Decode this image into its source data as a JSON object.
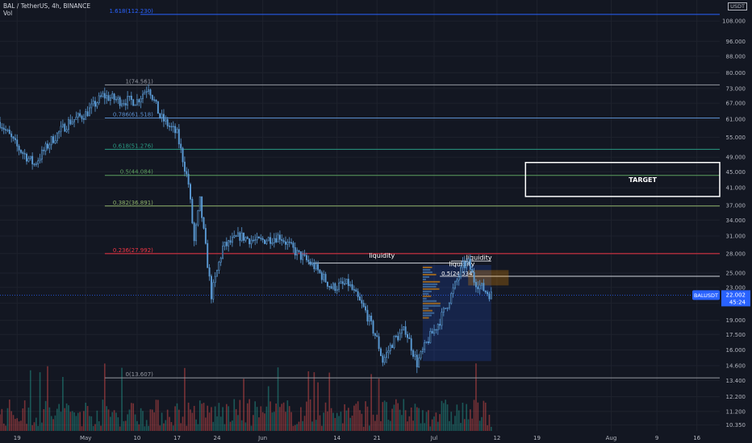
{
  "header": {
    "symbol_line": "BAL / TetherUS, 4h, BINANCE",
    "volume_label": "Vol",
    "currency": "USDT"
  },
  "price_axis": {
    "ticks": [
      "108.000",
      "96.000",
      "88.000",
      "80.000",
      "73.000",
      "67.000",
      "61.000",
      "55.000",
      "49.000",
      "45.000",
      "41.000",
      "37.000",
      "34.000",
      "31.000",
      "28.000",
      "25.000",
      "23.000",
      "21.000",
      "19.000",
      "17.500",
      "16.000",
      "14.600",
      "13.400",
      "12.200",
      "11.200",
      "10.350"
    ],
    "scale": "log",
    "current_price": "22.002",
    "countdown": "45:24",
    "ticker": "BALUSDT"
  },
  "time_axis": {
    "ticks": [
      "19",
      "May",
      "10",
      "17",
      "24",
      "Jun",
      "14",
      "21",
      "Jul",
      "12",
      "19",
      "Aug",
      "9",
      "16"
    ]
  },
  "fib_levels": [
    {
      "label": "1.618(112.230)",
      "price": 112.23,
      "color": "#2962ff"
    },
    {
      "label": "1(74.561)",
      "price": 74.561,
      "color": "#9598a1"
    },
    {
      "label": "0.786(61.518)",
      "price": 61.518,
      "color": "#5b8fcf"
    },
    {
      "label": "0.618(51.276)",
      "price": 51.276,
      "color": "#2a9b84"
    },
    {
      "label": "0.5(44.084)",
      "price": 44.084,
      "color": "#5da05f"
    },
    {
      "label": "0.382(36.891)",
      "price": 36.891,
      "color": "#8fb36b"
    },
    {
      "label": "0.236(27.992)",
      "price": 27.992,
      "color": "#f23645"
    },
    {
      "label": "0(13.607)",
      "price": 13.607,
      "color": "#9598a1"
    }
  ],
  "annotations": {
    "target_label": "TARGET",
    "liquidity_1": "liquidity",
    "liquidity_2": "liquidity",
    "liquidity_3": "liquidity",
    "fib_mid": "0.5(24.534)"
  },
  "colors": {
    "up": "#5b9bd5",
    "down": "#5b9bd5",
    "vol_up": "#26a69a",
    "vol_down": "#ef5350",
    "background": "#131722",
    "grid": "#1e222d",
    "price_tag": "#2962ff"
  },
  "chart_data": {
    "type": "candlestick",
    "timeframe": "4h",
    "y_scale": "log",
    "y_range": [
      10.0,
      122.0
    ],
    "x_range": [
      "2021-04-16",
      "2021-08-20"
    ],
    "price_path": [
      {
        "date": "2021-04-16",
        "price": 60
      },
      {
        "date": "2021-04-19",
        "price": 52
      },
      {
        "date": "2021-04-22",
        "price": 47
      },
      {
        "date": "2021-04-25",
        "price": 54
      },
      {
        "date": "2021-04-28",
        "price": 60
      },
      {
        "date": "2021-05-01",
        "price": 63
      },
      {
        "date": "2021-05-04",
        "price": 70
      },
      {
        "date": "2021-05-07",
        "price": 68
      },
      {
        "date": "2021-05-10",
        "price": 68
      },
      {
        "date": "2021-05-12",
        "price": 74
      },
      {
        "date": "2021-05-14",
        "price": 62
      },
      {
        "date": "2021-05-17",
        "price": 56
      },
      {
        "date": "2021-05-19",
        "price": 42
      },
      {
        "date": "2021-05-20",
        "price": 30
      },
      {
        "date": "2021-05-21",
        "price": 38
      },
      {
        "date": "2021-05-23",
        "price": 22
      },
      {
        "date": "2021-05-25",
        "price": 29
      },
      {
        "date": "2021-05-28",
        "price": 31
      },
      {
        "date": "2021-05-31",
        "price": 30
      },
      {
        "date": "2021-06-04",
        "price": 31
      },
      {
        "date": "2021-06-07",
        "price": 28
      },
      {
        "date": "2021-06-10",
        "price": 26
      },
      {
        "date": "2021-06-13",
        "price": 23
      },
      {
        "date": "2021-06-16",
        "price": 23.5
      },
      {
        "date": "2021-06-19",
        "price": 20
      },
      {
        "date": "2021-06-21",
        "price": 17
      },
      {
        "date": "2021-06-22",
        "price": 15
      },
      {
        "date": "2021-06-24",
        "price": 17
      },
      {
        "date": "2021-06-26",
        "price": 18
      },
      {
        "date": "2021-06-28",
        "price": 14.8
      },
      {
        "date": "2021-06-30",
        "price": 17
      },
      {
        "date": "2021-07-02",
        "price": 19
      },
      {
        "date": "2021-07-04",
        "price": 22
      },
      {
        "date": "2021-07-06",
        "price": 26
      },
      {
        "date": "2021-07-07",
        "price": 26.5
      },
      {
        "date": "2021-07-08",
        "price": 24
      },
      {
        "date": "2021-07-10",
        "price": 22.5
      },
      {
        "date": "2021-07-11",
        "price": 22
      }
    ],
    "target_zone": {
      "from": "2021-07-17",
      "to": "2021-08-20",
      "low": 39.0,
      "high": 47.5
    },
    "liquidity_levels": [
      {
        "from": "2021-06-09",
        "to": "2021-07-06",
        "price": 26.5
      },
      {
        "from": "2021-07-04",
        "to": "2021-07-11",
        "price": 26.8
      }
    ]
  }
}
